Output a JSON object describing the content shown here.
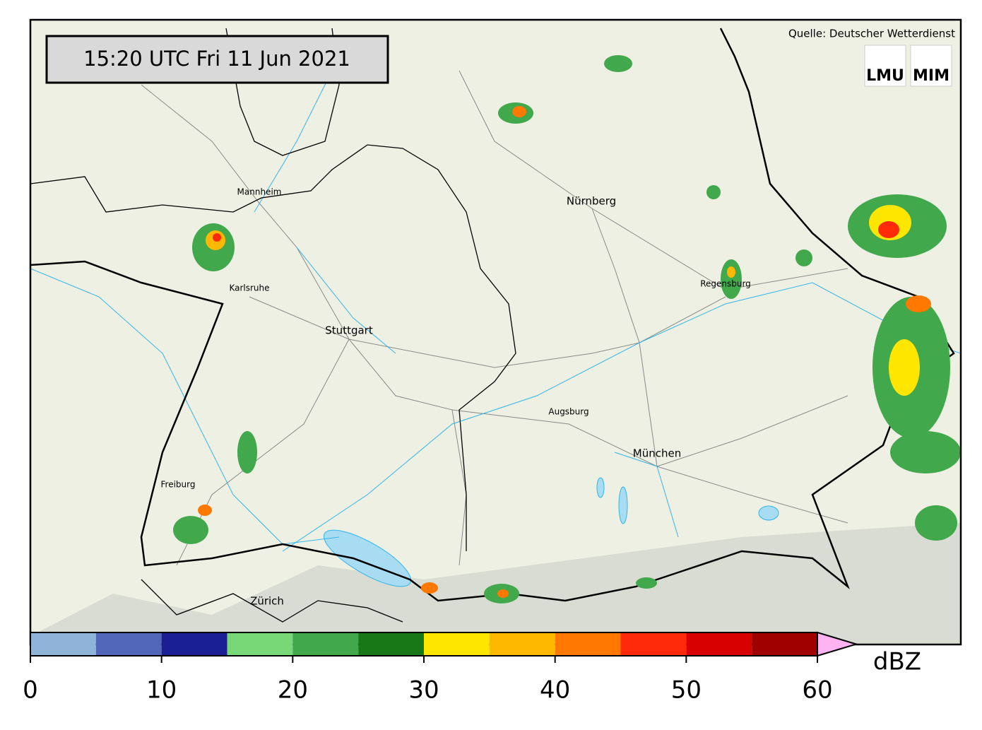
{
  "header": {
    "timestamp": "15:20 UTC  Fri 11 Jun 2021",
    "source": "Quelle: Deutscher Wetterdienst",
    "logos": [
      "LMU",
      "MIM"
    ]
  },
  "map": {
    "cities": [
      "Mannheim",
      "Nürnberg",
      "Karlsruhe",
      "Stuttgart",
      "Regensburg",
      "Augsburg",
      "München",
      "Freiburg",
      "Zürich"
    ]
  },
  "colorbar": {
    "label": "dBZ",
    "bins": [
      0,
      5,
      10,
      15,
      20,
      25,
      30,
      35,
      40,
      45,
      50,
      55,
      60
    ],
    "colors": [
      "#8fb3d9",
      "#5166b8",
      "#1a1f96",
      "#78d878",
      "#42a84c",
      "#187818",
      "#ffe600",
      "#ffb800",
      "#ff7800",
      "#ff2a0a",
      "#d80000",
      "#a00000"
    ],
    "extend_color": "#ffb3f0",
    "ticks": [
      0,
      10,
      20,
      30,
      40,
      50,
      60
    ]
  }
}
